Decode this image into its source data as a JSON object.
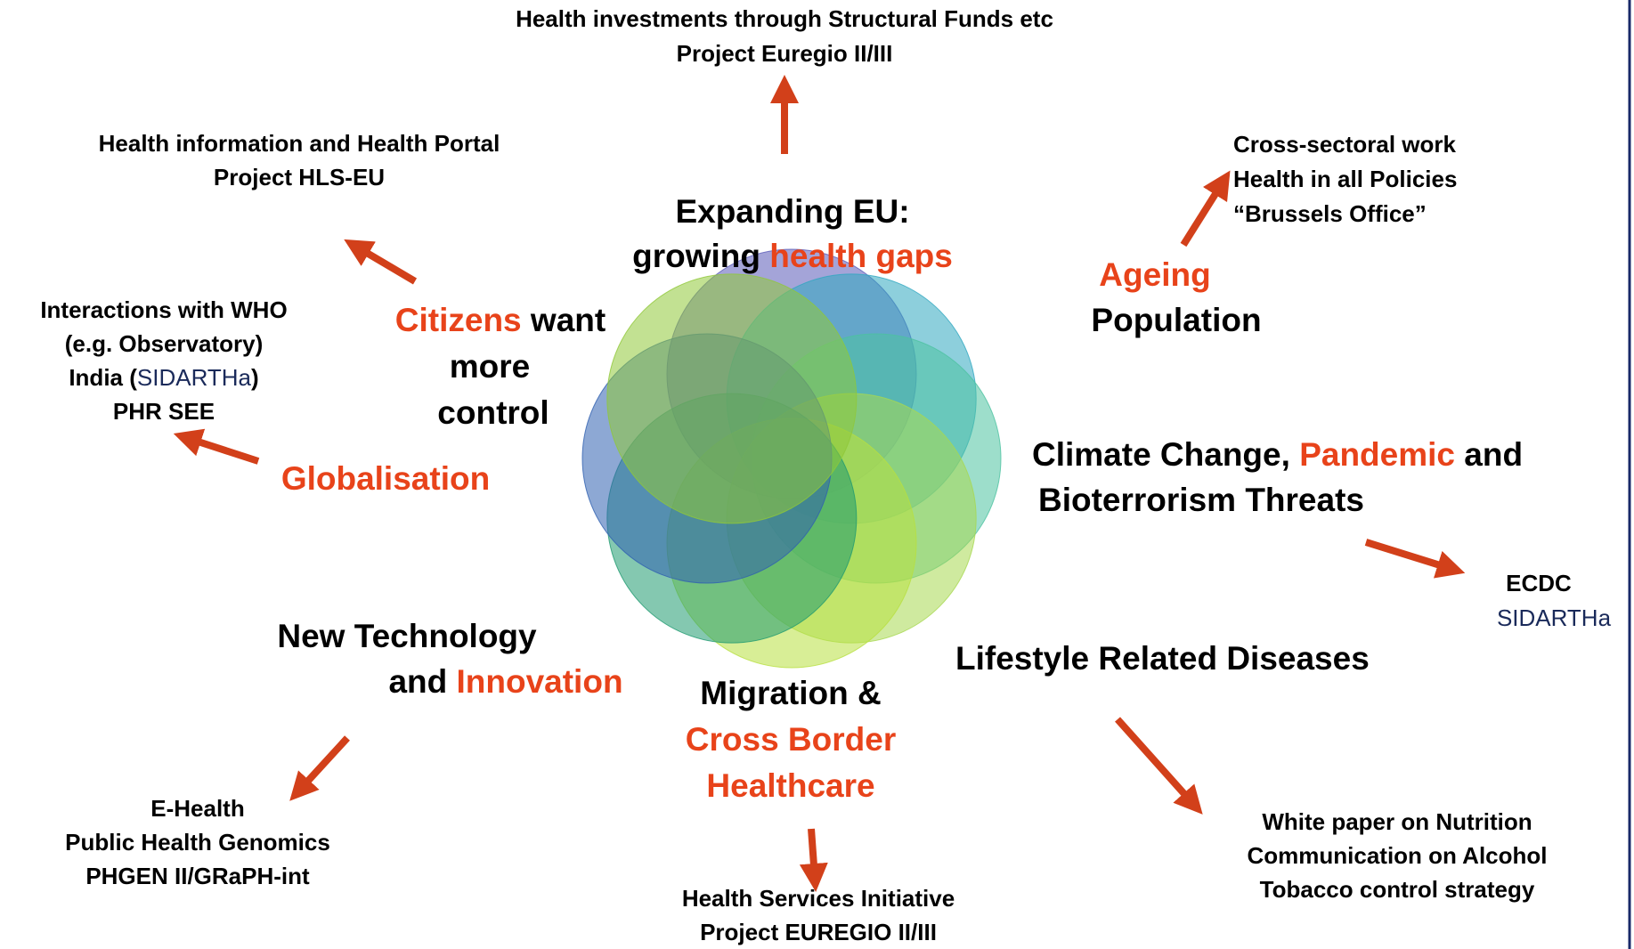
{
  "labels": [
    {
      "lines": [
        [
          {
            "text": "Health investments through Structural Funds etc"
          }
        ],
        [
          {
            "text": "Project Euregio II/III"
          }
        ]
      ]
    },
    {
      "lines": [
        [
          {
            "text": "Expanding EU:"
          }
        ],
        [
          {
            "text": "growing "
          },
          {
            "text": "health gaps",
            "color": "#e8431a"
          }
        ]
      ]
    },
    {
      "lines": [
        [
          {
            "text": "Health information and Health Portal"
          }
        ],
        [
          {
            "text": "Project HLS-EU"
          }
        ]
      ]
    },
    {
      "lines": [
        [
          {
            "text": "Citizens",
            "color": "#e8431a"
          },
          {
            "text": " want"
          }
        ],
        [
          {
            "text": "more"
          }
        ],
        [
          {
            "text": "control"
          }
        ]
      ]
    },
    {
      "lines": [
        [
          {
            "text": "Interactions with WHO"
          }
        ],
        [
          {
            "text": "(e.g. Observatory)"
          }
        ],
        [
          {
            "text": "India ("
          },
          {
            "text": "SIDARTHa",
            "color": "#1a2a5a"
          },
          {
            "text": ")"
          }
        ],
        [
          {
            "text": "PHR SEE"
          }
        ]
      ]
    },
    {
      "lines": [
        [
          {
            "text": "Globalisation",
            "color": "#e8431a"
          }
        ]
      ]
    },
    {
      "lines": [
        [
          {
            "text": "Cross-sectoral work"
          }
        ],
        [
          {
            "text": "Health in all Policies"
          }
        ],
        [
          {
            "text": "“Brussels Office”"
          }
        ]
      ]
    },
    {
      "lines": [
        [
          {
            "text": "Ageing",
            "color": "#e8431a"
          }
        ],
        [
          {
            "text": "Population"
          }
        ]
      ]
    },
    {
      "lines": [
        [
          {
            "text": "Climate Change, "
          },
          {
            "text": "Pandemic",
            "color": "#e8431a"
          },
          {
            "text": " and"
          }
        ],
        [
          {
            "text": "Bioterrorism Threats"
          }
        ]
      ]
    },
    {
      "lines": [
        [
          {
            "text": "ECDC"
          }
        ],
        [
          {
            "text": "SIDARTHa",
            "color": "#1a2a5a"
          }
        ]
      ]
    },
    {
      "lines": [
        [
          {
            "text": "Lifestyle Related Diseases"
          }
        ]
      ]
    },
    {
      "lines": [
        [
          {
            "text": "White paper on Nutrition"
          }
        ],
        [
          {
            "text": "Communication on Alcohol"
          }
        ],
        [
          {
            "text": "Tobacco control strategy"
          }
        ]
      ]
    },
    {
      "lines": [
        [
          {
            "text": "Migration &"
          }
        ],
        [
          {
            "text": "Cross Border",
            "color": "#e8431a"
          }
        ],
        [
          {
            "text": "Healthcare",
            "color": "#e8431a"
          }
        ]
      ]
    },
    {
      "lines": [
        [
          {
            "text": "Health Services Initiative"
          }
        ],
        [
          {
            "text": "Project EUREGIO II/III"
          }
        ]
      ]
    },
    {
      "lines": [
        [
          {
            "text": "New Technology"
          }
        ],
        [
          {
            "text": "and "
          },
          {
            "text": "Innovation",
            "color": "#e8431a"
          }
        ]
      ]
    },
    {
      "lines": [
        [
          {
            "text": "E-Health"
          }
        ],
        [
          {
            "text": "Public Health Genomics"
          }
        ],
        [
          {
            "text": "PHGEN II/GRaPH-int"
          }
        ]
      ]
    }
  ]
}
